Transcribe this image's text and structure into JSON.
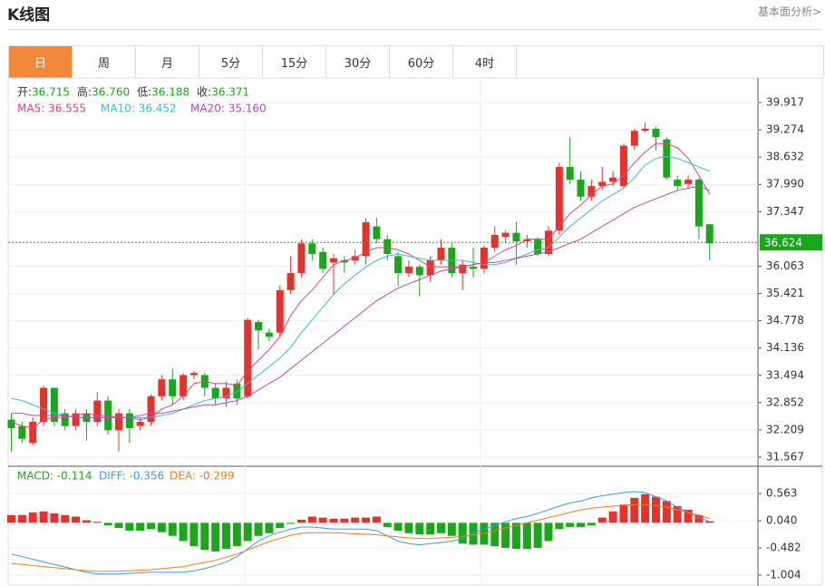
{
  "header": {
    "title": "K线图",
    "link": "基本面分析>"
  },
  "tabs": [
    "日",
    "周",
    "月",
    "5分",
    "15分",
    "30分",
    "60分",
    "4时"
  ],
  "active_tab": 0,
  "chart_data": [
    {
      "type": "candlestick",
      "info": [
        {
          "label": "开:",
          "value": "36.715"
        },
        {
          "label": "高:",
          "value": "36.760"
        },
        {
          "label": "低:",
          "value": "36.188"
        },
        {
          "label": "收:",
          "value": "36.371"
        }
      ],
      "up_color": "#e8312a",
      "down_color": "#1aa81a",
      "ylim": [
        31.353,
        40.494
      ],
      "yticks": [
        39.917,
        39.274,
        38.632,
        {
          "value": 37.99,
          "label": "37.990"
        },
        37.347,
        36.063,
        35.421,
        34.778,
        34.136,
        33.494,
        32.852,
        32.209,
        31.567
      ],
      "last_price": 36.624,
      "open": [
        32.45,
        32.3,
        31.9,
        32.4,
        33.2,
        32.6,
        32.3,
        32.6,
        32.4,
        32.9,
        32.2,
        32.6,
        32.3,
        32.4,
        33.0,
        33.4,
        33.0,
        33.5,
        33.5,
        33.2,
        32.95,
        33.3,
        33.0,
        34.75,
        34.5,
        34.5,
        35.5,
        35.9,
        36.6,
        36.4,
        36.15,
        36.2,
        36.2,
        36.3,
        37.0,
        36.7,
        36.3,
        35.9,
        36.05,
        35.85,
        36.2,
        36.5,
        35.9,
        36.05,
        36.0,
        36.5,
        36.75,
        36.85,
        36.65,
        36.7,
        36.35,
        36.9,
        38.4,
        38.1,
        37.7,
        37.95,
        38.05,
        37.95,
        38.9,
        39.25,
        39.3,
        39.05,
        38.1,
        38.0,
        38.1,
        37.05
      ],
      "high": [
        32.6,
        32.4,
        32.5,
        33.25,
        33.2,
        32.7,
        32.7,
        32.7,
        33.1,
        33.0,
        32.7,
        32.7,
        32.5,
        33.05,
        33.5,
        33.65,
        33.55,
        33.6,
        33.55,
        33.3,
        33.35,
        33.4,
        34.85,
        34.8,
        34.6,
        35.6,
        36.3,
        36.7,
        36.7,
        36.5,
        36.35,
        36.3,
        36.45,
        37.2,
        37.2,
        36.8,
        36.4,
        36.2,
        36.1,
        36.3,
        36.7,
        36.6,
        36.2,
        36.5,
        36.55,
        37.0,
        36.9,
        37.1,
        36.8,
        36.75,
        37.0,
        38.5,
        39.1,
        38.3,
        38.1,
        38.4,
        38.3,
        38.95,
        39.3,
        39.45,
        39.35,
        39.1,
        38.2,
        38.2,
        38.15,
        37.05
      ],
      "low": [
        31.7,
        31.9,
        31.85,
        32.3,
        32.3,
        32.2,
        32.2,
        31.95,
        32.3,
        32.1,
        31.7,
        31.9,
        32.2,
        32.3,
        32.9,
        32.8,
        32.9,
        33.4,
        33.0,
        32.8,
        32.75,
        32.8,
        32.95,
        34.1,
        34.3,
        34.4,
        35.4,
        35.8,
        36.2,
        35.9,
        35.4,
        35.9,
        36.1,
        36.1,
        36.6,
        36.2,
        35.6,
        35.8,
        35.35,
        35.7,
        36.1,
        35.8,
        35.5,
        35.8,
        35.9,
        36.4,
        36.6,
        36.1,
        36.5,
        36.3,
        36.3,
        36.8,
        38.0,
        37.6,
        37.6,
        37.85,
        37.95,
        37.9,
        38.8,
        39.2,
        38.8,
        38.1,
        37.85,
        37.9,
        36.7,
        36.2
      ],
      "close": [
        32.25,
        32.0,
        32.4,
        33.2,
        32.4,
        32.3,
        32.6,
        32.4,
        32.9,
        32.2,
        32.6,
        32.25,
        32.4,
        33.0,
        33.4,
        33.0,
        33.5,
        33.55,
        33.2,
        32.95,
        33.2,
        32.95,
        34.8,
        34.55,
        34.4,
        35.5,
        35.9,
        36.6,
        36.35,
        36.0,
        36.25,
        36.15,
        36.3,
        37.1,
        36.7,
        36.35,
        35.9,
        36.05,
        35.85,
        36.2,
        36.5,
        35.9,
        36.1,
        36.0,
        36.5,
        36.8,
        36.85,
        36.65,
        36.7,
        36.35,
        36.9,
        38.4,
        38.1,
        37.7,
        37.95,
        38.05,
        38.15,
        38.9,
        39.25,
        39.3,
        39.1,
        38.15,
        37.95,
        38.1,
        37.0,
        36.6
      ],
      "series": [
        {
          "label": "MA5:  36.555",
          "color": "#e2447c",
          "values": [
            32.4,
            32.3,
            32.25,
            32.45,
            32.5,
            32.5,
            32.55,
            32.6,
            32.55,
            32.55,
            32.5,
            32.5,
            32.45,
            32.5,
            32.7,
            32.8,
            33.0,
            33.3,
            33.35,
            33.3,
            33.3,
            33.25,
            33.6,
            33.85,
            34.1,
            34.4,
            34.9,
            35.25,
            35.5,
            35.8,
            36.1,
            36.2,
            36.25,
            36.4,
            36.5,
            36.5,
            36.45,
            36.35,
            36.2,
            36.05,
            36.05,
            36.05,
            36.05,
            36.1,
            36.15,
            36.3,
            36.45,
            36.55,
            36.7,
            36.7,
            36.7,
            37.0,
            37.3,
            37.5,
            37.75,
            37.95,
            38.0,
            38.2,
            38.5,
            38.75,
            38.95,
            38.95,
            38.85,
            38.6,
            38.2,
            37.75
          ]
        },
        {
          "label": "MA10:  36.452",
          "color": "#3cb9d9",
          "values": [
            32.95,
            32.9,
            32.8,
            32.7,
            32.6,
            32.55,
            32.5,
            32.5,
            32.5,
            32.5,
            32.5,
            32.5,
            32.5,
            32.5,
            32.55,
            32.6,
            32.7,
            32.8,
            32.9,
            32.95,
            33.0,
            33.1,
            33.3,
            33.5,
            33.7,
            33.9,
            34.15,
            34.5,
            34.8,
            35.1,
            35.4,
            35.65,
            35.85,
            36.05,
            36.2,
            36.3,
            36.35,
            36.3,
            36.25,
            36.2,
            36.2,
            36.2,
            36.2,
            36.15,
            36.1,
            36.1,
            36.15,
            36.25,
            36.35,
            36.45,
            36.5,
            36.75,
            37.0,
            37.2,
            37.4,
            37.6,
            37.75,
            37.9,
            38.15,
            38.45,
            38.6,
            38.65,
            38.6,
            38.5,
            38.4,
            38.3
          ]
        },
        {
          "label": "MA20:  35.160",
          "color": "#b44bb4",
          "values": [
            32.6,
            32.6,
            32.55,
            32.55,
            32.55,
            32.55,
            32.5,
            32.5,
            32.5,
            32.5,
            32.5,
            32.5,
            32.55,
            32.6,
            32.6,
            32.65,
            32.7,
            32.75,
            32.8,
            32.8,
            32.85,
            32.9,
            33.0,
            33.15,
            33.3,
            33.45,
            33.65,
            33.85,
            34.05,
            34.25,
            34.45,
            34.65,
            34.85,
            35.05,
            35.25,
            35.4,
            35.55,
            35.65,
            35.75,
            35.85,
            35.95,
            36.0,
            36.05,
            36.1,
            36.15,
            36.15,
            36.2,
            36.25,
            36.3,
            36.35,
            36.4,
            36.5,
            36.6,
            36.7,
            36.85,
            37.0,
            37.15,
            37.3,
            37.45,
            37.55,
            37.65,
            37.75,
            37.85,
            37.9,
            37.95,
            37.85
          ]
        }
      ]
    },
    {
      "type": "macd",
      "ylim": [
        -1.213,
        1.086
      ],
      "yticks": [
        0.563,
        {
          "value": 0.04,
          "label": "0.040"
        },
        -0.482,
        -1.004
      ],
      "histogram": {
        "label": "MACD: -0.114",
        "color": "#1aa81a",
        "up_color": "#e8312a",
        "down_color": "#1aa81a",
        "values": [
          0.15,
          0.15,
          0.2,
          0.22,
          0.18,
          0.15,
          0.12,
          0.05,
          0.02,
          -0.05,
          -0.1,
          -0.15,
          -0.15,
          -0.12,
          -0.18,
          -0.25,
          -0.35,
          -0.45,
          -0.52,
          -0.55,
          -0.5,
          -0.45,
          -0.35,
          -0.25,
          -0.2,
          -0.1,
          -0.02,
          0.06,
          0.12,
          0.1,
          0.08,
          0.08,
          0.1,
          0.1,
          0.12,
          -0.08,
          -0.15,
          -0.2,
          -0.22,
          -0.22,
          -0.2,
          -0.25,
          -0.4,
          -0.42,
          -0.42,
          -0.45,
          -0.48,
          -0.5,
          -0.5,
          -0.48,
          -0.35,
          -0.12,
          -0.08,
          -0.08,
          -0.05,
          0.1,
          0.22,
          0.35,
          0.48,
          0.55,
          0.5,
          0.42,
          0.32,
          0.25,
          0.15,
          0.03
        ]
      },
      "series": [
        {
          "label": "DIFF: -0.356",
          "color": "#3b9be0",
          "values": [
            -0.6,
            -0.65,
            -0.7,
            -0.75,
            -0.8,
            -0.85,
            -0.9,
            -0.95,
            -0.98,
            -0.98,
            -0.98,
            -0.97,
            -0.96,
            -0.95,
            -0.95,
            -0.95,
            -0.95,
            -0.92,
            -0.88,
            -0.82,
            -0.75,
            -0.65,
            -0.5,
            -0.35,
            -0.25,
            -0.18,
            -0.12,
            -0.08,
            -0.08,
            -0.1,
            -0.12,
            -0.12,
            -0.12,
            -0.12,
            -0.15,
            -0.25,
            -0.35,
            -0.4,
            -0.42,
            -0.4,
            -0.38,
            -0.35,
            -0.3,
            -0.2,
            -0.12,
            -0.05,
            0.02,
            0.08,
            0.12,
            0.18,
            0.25,
            0.32,
            0.38,
            0.42,
            0.48,
            0.52,
            0.55,
            0.58,
            0.6,
            0.58,
            0.5,
            0.42,
            0.3,
            0.2,
            0.1,
            0.02
          ]
        },
        {
          "label": "DEA: -0.299",
          "color": "#ef7d22",
          "values": [
            -0.78,
            -0.8,
            -0.82,
            -0.84,
            -0.86,
            -0.88,
            -0.9,
            -0.92,
            -0.93,
            -0.93,
            -0.93,
            -0.92,
            -0.91,
            -0.9,
            -0.88,
            -0.86,
            -0.84,
            -0.8,
            -0.76,
            -0.72,
            -0.66,
            -0.6,
            -0.52,
            -0.44,
            -0.36,
            -0.3,
            -0.24,
            -0.2,
            -0.19,
            -0.19,
            -0.19,
            -0.2,
            -0.21,
            -0.22,
            -0.23,
            -0.25,
            -0.27,
            -0.29,
            -0.3,
            -0.3,
            -0.29,
            -0.28,
            -0.26,
            -0.23,
            -0.2,
            -0.15,
            -0.1,
            -0.05,
            0.0,
            0.05,
            0.1,
            0.15,
            0.2,
            0.25,
            0.28,
            0.3,
            0.32,
            0.34,
            0.35,
            0.35,
            0.33,
            0.3,
            0.25,
            0.2,
            0.15,
            0.08
          ]
        }
      ]
    }
  ]
}
